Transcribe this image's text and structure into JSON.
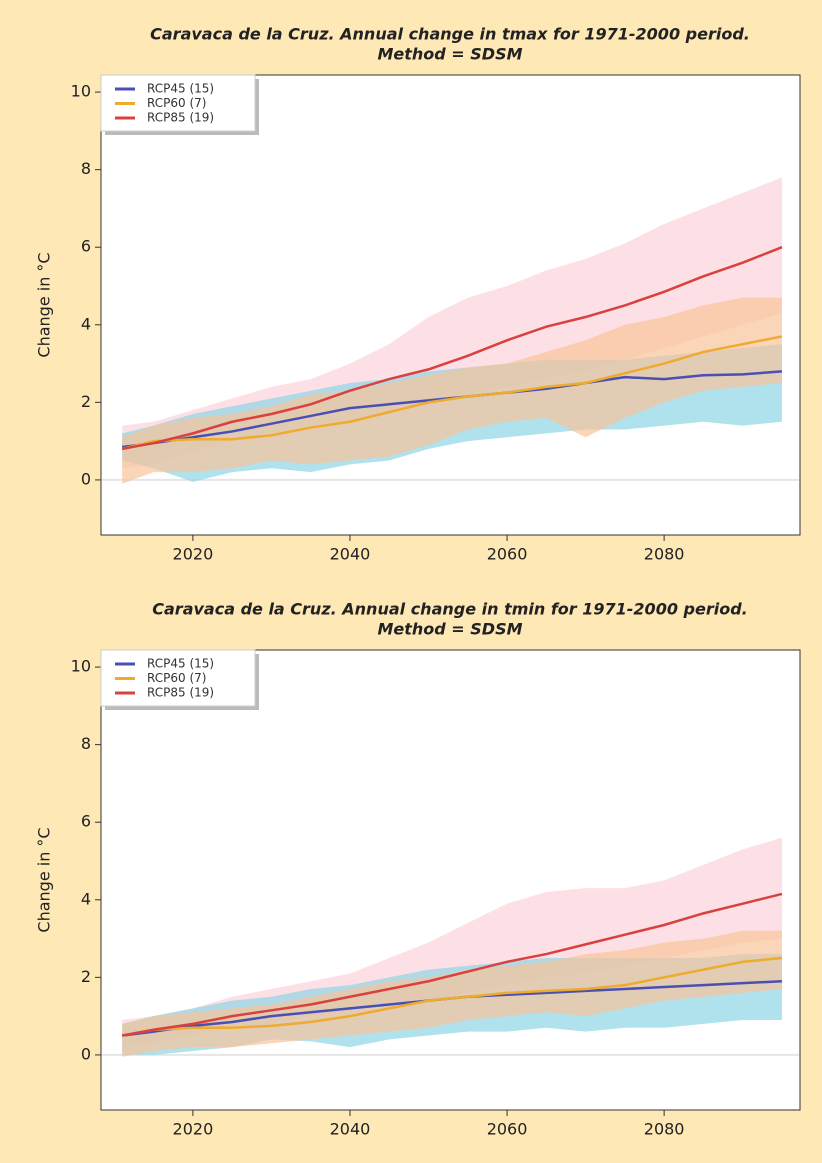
{
  "chart_data": [
    {
      "type": "line",
      "title": "Caravaca de la Cruz. Annual change in tmax for 1971-2000 period.",
      "subtitle": "Method = SDSM",
      "y_label": "Change in °C",
      "x": [
        2011,
        2015,
        2020,
        2025,
        2030,
        2035,
        2040,
        2045,
        2050,
        2055,
        2060,
        2065,
        2070,
        2075,
        2080,
        2085,
        2090,
        2095
      ],
      "xlim": [
        2008.3,
        2097.3
      ],
      "xticks": [
        2020,
        2040,
        2060,
        2080
      ],
      "ylim": [
        -1.42,
        10.44
      ],
      "yticks": [
        0,
        2,
        4,
        6,
        8,
        10
      ],
      "hlines": [
        0
      ],
      "legend": "upper left",
      "series": [
        {
          "name": "RCP45 (15)",
          "color": "#4a4fb3",
          "band_color": "#8fd6e6",
          "values": [
            0.85,
            0.95,
            1.1,
            1.25,
            1.45,
            1.65,
            1.85,
            1.95,
            2.05,
            2.15,
            2.25,
            2.35,
            2.5,
            2.65,
            2.6,
            2.7,
            2.72,
            2.8
          ],
          "lower": [
            0.5,
            0.3,
            -0.05,
            0.2,
            0.3,
            0.2,
            0.4,
            0.5,
            0.8,
            1.0,
            1.1,
            1.2,
            1.3,
            1.3,
            1.4,
            1.5,
            1.4,
            1.5
          ],
          "upper": [
            1.2,
            1.4,
            1.7,
            1.9,
            2.1,
            2.3,
            2.5,
            2.6,
            2.8,
            2.9,
            3.0,
            3.1,
            3.1,
            3.1,
            3.2,
            3.3,
            3.4,
            3.5
          ]
        },
        {
          "name": "RCP60 (7)",
          "color": "#eeab2e",
          "band_color": "#f8c39a",
          "values": [
            0.8,
            1.0,
            1.05,
            1.05,
            1.15,
            1.35,
            1.5,
            1.75,
            2.0,
            2.15,
            2.25,
            2.4,
            2.5,
            2.75,
            3.0,
            3.3,
            3.5,
            3.7
          ],
          "lower": [
            -0.1,
            0.2,
            0.2,
            0.3,
            0.5,
            0.4,
            0.5,
            0.6,
            0.9,
            1.3,
            1.5,
            1.6,
            1.1,
            1.6,
            2.0,
            2.3,
            2.4,
            2.5
          ],
          "upper": [
            1.1,
            1.4,
            1.6,
            1.7,
            1.9,
            2.2,
            2.3,
            2.5,
            2.7,
            2.9,
            3.0,
            3.3,
            3.6,
            4.0,
            4.2,
            4.5,
            4.7,
            4.7
          ]
        },
        {
          "name": "RCP85 (19)",
          "color": "#d9413f",
          "band_color": "#fcd3da",
          "values": [
            0.8,
            0.95,
            1.2,
            1.5,
            1.7,
            1.95,
            2.3,
            2.6,
            2.85,
            3.2,
            3.6,
            3.95,
            4.2,
            4.5,
            4.85,
            5.25,
            5.6,
            6.0
          ],
          "lower": [
            0.3,
            0.4,
            0.7,
            1.0,
            1.1,
            1.3,
            1.5,
            1.7,
            2.0,
            2.2,
            2.4,
            2.6,
            2.8,
            3.1,
            3.4,
            3.7,
            4.0,
            4.3
          ],
          "upper": [
            1.4,
            1.5,
            1.8,
            2.1,
            2.4,
            2.6,
            3.0,
            3.5,
            4.2,
            4.7,
            5.0,
            5.4,
            5.7,
            6.1,
            6.6,
            7.0,
            7.4,
            7.8
          ]
        }
      ]
    },
    {
      "type": "line",
      "title": "Caravaca de la Cruz. Annual change in tmin for 1971-2000 period.",
      "subtitle": "Method = SDSM",
      "y_label": "Change in °C",
      "x": [
        2011,
        2015,
        2020,
        2025,
        2030,
        2035,
        2040,
        2045,
        2050,
        2055,
        2060,
        2065,
        2070,
        2075,
        2080,
        2085,
        2090,
        2095
      ],
      "xlim": [
        2008.3,
        2097.3
      ],
      "xticks": [
        2020,
        2040,
        2060,
        2080
      ],
      "ylim": [
        -1.42,
        10.44
      ],
      "yticks": [
        0,
        2,
        4,
        6,
        8,
        10
      ],
      "hlines": [
        0
      ],
      "legend": "upper left",
      "series": [
        {
          "name": "RCP45 (15)",
          "color": "#4a4fb3",
          "band_color": "#8fd6e6",
          "values": [
            0.5,
            0.6,
            0.75,
            0.85,
            1.0,
            1.1,
            1.2,
            1.3,
            1.4,
            1.5,
            1.55,
            1.6,
            1.65,
            1.7,
            1.75,
            1.8,
            1.85,
            1.9
          ],
          "lower": [
            0.0,
            0.0,
            0.1,
            0.2,
            0.4,
            0.35,
            0.2,
            0.4,
            0.5,
            0.6,
            0.6,
            0.7,
            0.6,
            0.7,
            0.7,
            0.8,
            0.9,
            0.9
          ],
          "upper": [
            0.8,
            1.0,
            1.2,
            1.4,
            1.5,
            1.7,
            1.8,
            2.0,
            2.2,
            2.3,
            2.4,
            2.5,
            2.5,
            2.5,
            2.5,
            2.5,
            2.6,
            2.6
          ]
        },
        {
          "name": "RCP60 (7)",
          "color": "#eeab2e",
          "band_color": "#f8c39a",
          "values": [
            0.5,
            0.65,
            0.7,
            0.7,
            0.75,
            0.85,
            1.0,
            1.2,
            1.4,
            1.5,
            1.6,
            1.65,
            1.7,
            1.8,
            2.0,
            2.2,
            2.4,
            2.5
          ],
          "lower": [
            -0.05,
            0.1,
            0.2,
            0.2,
            0.3,
            0.4,
            0.5,
            0.6,
            0.7,
            0.9,
            1.0,
            1.1,
            1.0,
            1.2,
            1.4,
            1.5,
            1.6,
            1.7
          ],
          "upper": [
            0.8,
            1.0,
            1.1,
            1.2,
            1.3,
            1.5,
            1.7,
            1.9,
            2.0,
            2.2,
            2.3,
            2.4,
            2.6,
            2.7,
            2.9,
            3.0,
            3.2,
            3.2
          ]
        },
        {
          "name": "RCP85 (19)",
          "color": "#d9413f",
          "band_color": "#fcd3da",
          "values": [
            0.5,
            0.65,
            0.8,
            1.0,
            1.15,
            1.3,
            1.5,
            1.7,
            1.9,
            2.15,
            2.4,
            2.6,
            2.85,
            3.1,
            3.35,
            3.65,
            3.9,
            4.15
          ],
          "lower": [
            0.2,
            0.3,
            0.5,
            0.7,
            0.8,
            1.0,
            1.1,
            1.3,
            1.4,
            1.6,
            1.8,
            2.0,
            2.1,
            2.3,
            2.5,
            2.7,
            2.9,
            3.0
          ],
          "upper": [
            0.9,
            1.0,
            1.2,
            1.5,
            1.7,
            1.9,
            2.1,
            2.5,
            2.9,
            3.4,
            3.9,
            4.2,
            4.3,
            4.3,
            4.5,
            4.9,
            5.3,
            5.6
          ]
        }
      ]
    }
  ]
}
